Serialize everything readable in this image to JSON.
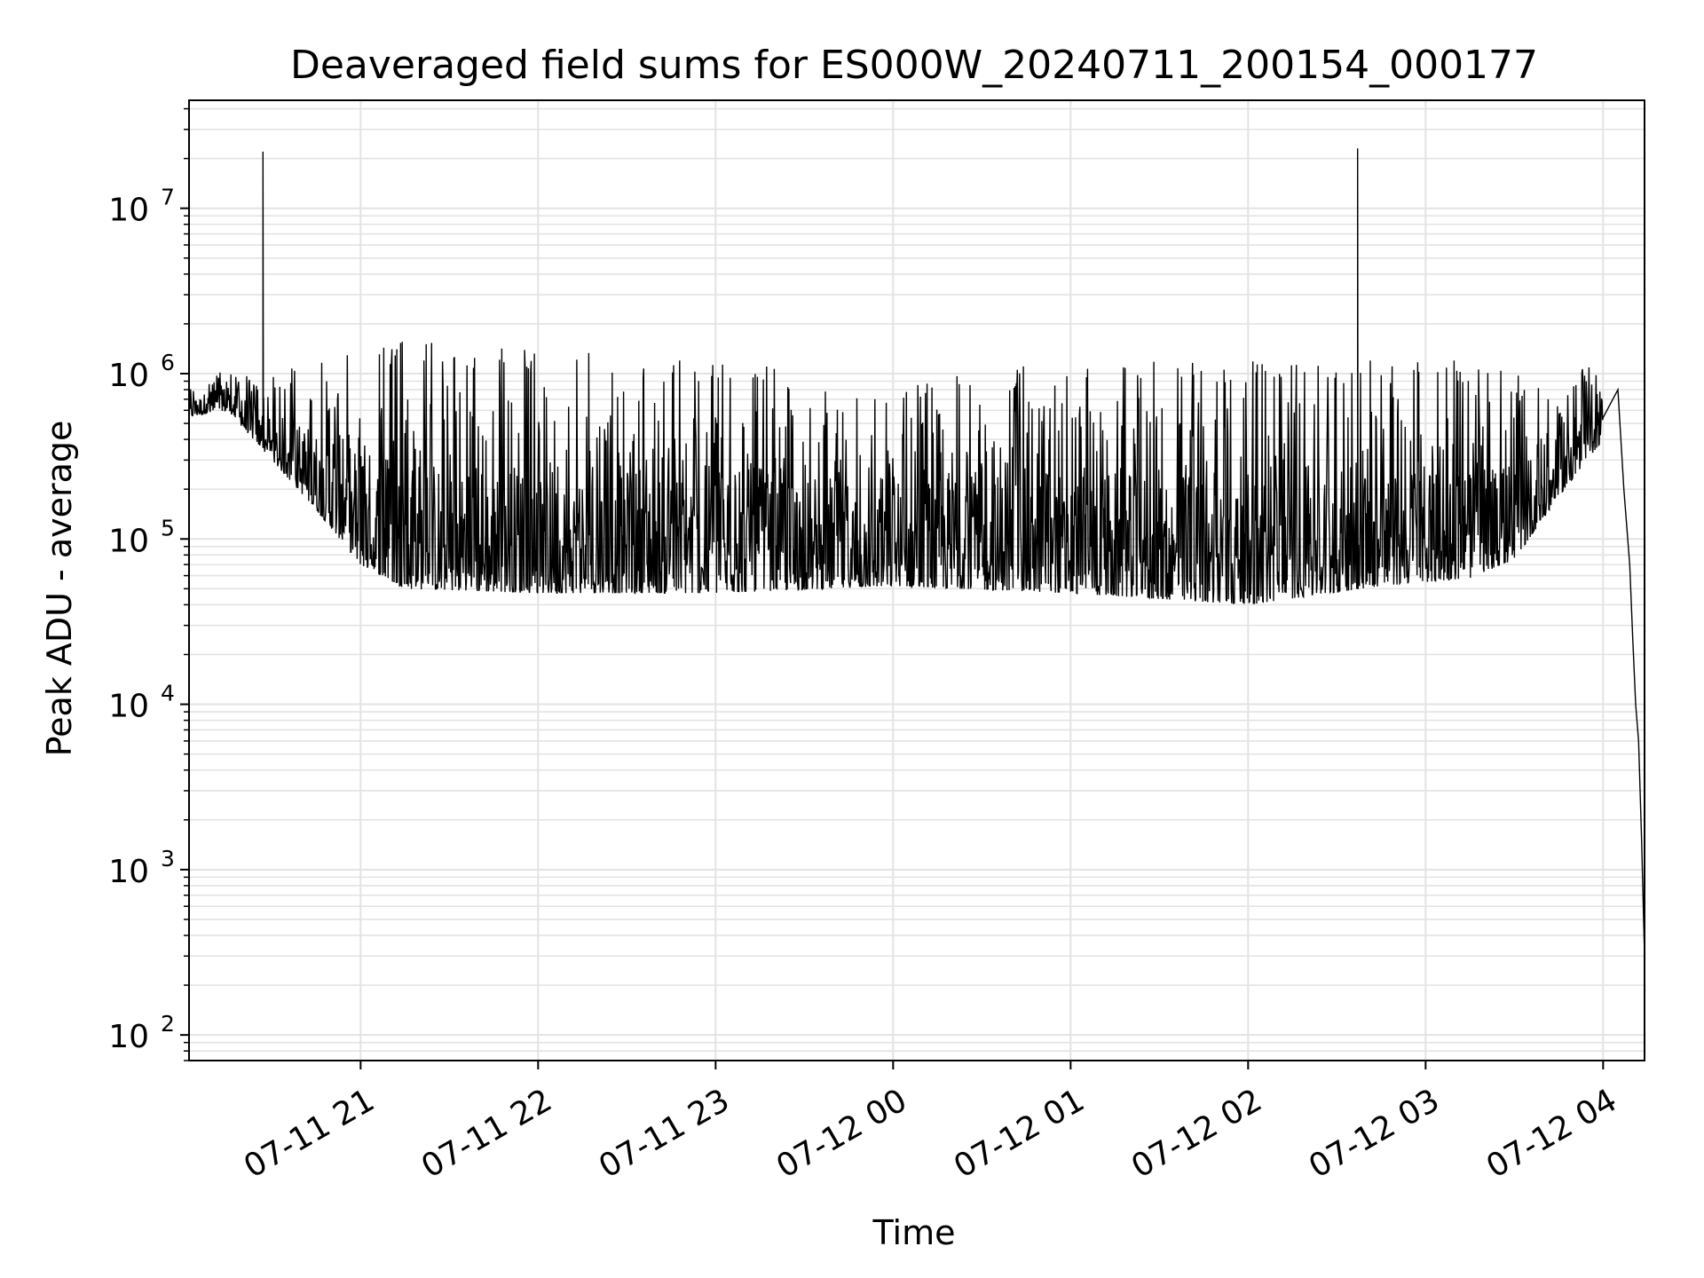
{
  "chart_data": {
    "type": "line",
    "title": "Deaveraged field sums for ES000W_20240711_200154_000177",
    "xlabel": "Time",
    "ylabel": "Peak ADU - average",
    "y_scale": "log",
    "ylim": [
      70,
      45000000
    ],
    "xlim": [
      "2024-07-11 20:02",
      "2024-07-12 04:14"
    ],
    "x_tick_labels": [
      "07-11 21",
      "07-11 22",
      "07-11 23",
      "07-12 00",
      "07-12 01",
      "07-12 02",
      "07-12 03",
      "07-12 04"
    ],
    "x_ticks": [
      "2024-07-11 21:00",
      "2024-07-11 22:00",
      "2024-07-11 23:00",
      "2024-07-12 00:00",
      "2024-07-12 01:00",
      "2024-07-12 02:00",
      "2024-07-12 03:00",
      "2024-07-12 04:00"
    ],
    "y_tick_labels": [
      {
        "base": "10",
        "exp": "2",
        "value": 100
      },
      {
        "base": "10",
        "exp": "3",
        "value": 1000
      },
      {
        "base": "10",
        "exp": "4",
        "value": 10000
      },
      {
        "base": "10",
        "exp": "5",
        "value": 100000
      },
      {
        "base": "10",
        "exp": "6",
        "value": 1000000
      },
      {
        "base": "10",
        "exp": "7",
        "value": 10000000
      }
    ],
    "grid": true,
    "line_color": "#000000",
    "grid_color": "#e3e3e3",
    "series": [
      {
        "envelope": [
          {
            "time": "2024-07-11 20:02",
            "low": 550000,
            "high": 900000
          },
          {
            "time": "2024-07-11 20:15",
            "low": 600000,
            "high": 1200000
          },
          {
            "time": "2024-07-11 20:30",
            "low": 300000,
            "high": 1000000
          },
          {
            "time": "2024-07-11 20:45",
            "low": 150000,
            "high": 1300000
          },
          {
            "time": "2024-07-11 21:00",
            "low": 70000,
            "high": 1500000
          },
          {
            "time": "2024-07-11 21:15",
            "low": 50000,
            "high": 1600000
          },
          {
            "time": "2024-07-11 22:00",
            "low": 47000,
            "high": 1400000
          },
          {
            "time": "2024-07-11 23:00",
            "low": 47000,
            "high": 1200000
          },
          {
            "time": "2024-07-12 00:00",
            "low": 52000,
            "high": 900000
          },
          {
            "time": "2024-07-12 01:00",
            "low": 47000,
            "high": 1200000
          },
          {
            "time": "2024-07-12 02:00",
            "low": 40000,
            "high": 1200000
          },
          {
            "time": "2024-07-12 02:45",
            "low": 52000,
            "high": 1200000
          },
          {
            "time": "2024-07-12 03:15",
            "low": 58000,
            "high": 1200000
          },
          {
            "time": "2024-07-12 03:30",
            "low": 75000,
            "high": 1000000
          },
          {
            "time": "2024-07-12 03:45",
            "low": 180000,
            "high": 800000
          },
          {
            "time": "2024-07-12 04:00",
            "low": 400000,
            "high": 1500000
          }
        ],
        "spikes": [
          {
            "time": "2024-07-11 20:27",
            "value": 22000000
          },
          {
            "time": "2024-07-11 20:27",
            "value": 11000000
          },
          {
            "time": "2024-07-12 02:37",
            "value": 23000000
          }
        ],
        "tail": [
          {
            "time": "2024-07-12 04:05",
            "value": 800000
          },
          {
            "time": "2024-07-12 04:07",
            "value": 200000
          },
          {
            "time": "2024-07-12 04:09",
            "value": 70000
          },
          {
            "time": "2024-07-12 04:10",
            "value": 25000
          },
          {
            "time": "2024-07-12 04:11",
            "value": 10000
          },
          {
            "time": "2024-07-12 04:12",
            "value": 6000
          },
          {
            "time": "2024-07-12 04:13",
            "value": 1500
          },
          {
            "time": "2024-07-12 04:14",
            "value": 300
          }
        ]
      }
    ]
  }
}
